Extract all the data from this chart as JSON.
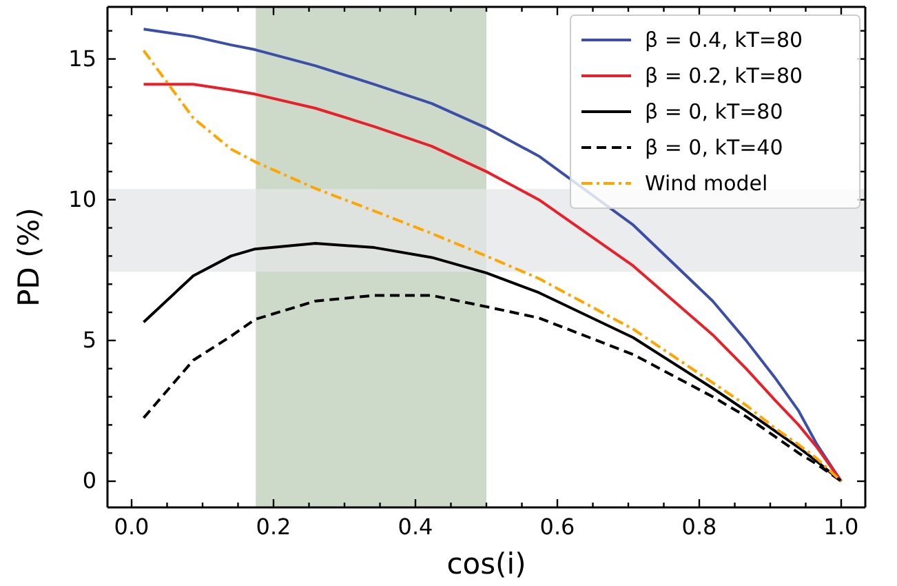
{
  "chart_data": {
    "type": "line",
    "xlabel": "cos(i)",
    "ylabel": "PD (%)",
    "x": [
      0.017,
      0.087,
      0.14,
      0.174,
      0.259,
      0.342,
      0.423,
      0.5,
      0.574,
      0.707,
      0.819,
      0.866,
      0.906,
      0.94,
      0.966,
      1.0
    ],
    "series": [
      {
        "name": "β = 0.4, kT=80",
        "color": "#3b4fa8",
        "line_style": "solid",
        "values": [
          16.06,
          15.8,
          15.5,
          15.33,
          14.76,
          14.1,
          13.42,
          12.55,
          11.55,
          9.1,
          6.4,
          5.0,
          3.7,
          2.5,
          1.3,
          0
        ]
      },
      {
        "name": "β = 0.2, kT=80",
        "color": "#e8202a",
        "line_style": "solid",
        "values": [
          14.1,
          14.1,
          13.9,
          13.75,
          13.25,
          12.6,
          11.9,
          11.0,
          10.0,
          7.65,
          5.2,
          4.0,
          2.9,
          2.0,
          1.2,
          0
        ]
      },
      {
        "name": "β = 0, kT=80",
        "color": "#000000",
        "line_style": "solid",
        "values": [
          5.65,
          7.3,
          8.0,
          8.25,
          8.45,
          8.3,
          7.95,
          7.4,
          6.7,
          5.1,
          3.3,
          2.5,
          1.8,
          1.2,
          0.7,
          0
        ]
      },
      {
        "name": "β = 0, kT=40",
        "color": "#000000",
        "line_style": "dashed",
        "values": [
          2.25,
          4.3,
          5.15,
          5.75,
          6.4,
          6.6,
          6.6,
          6.2,
          5.8,
          4.5,
          3.0,
          2.3,
          1.6,
          1.0,
          0.6,
          0
        ]
      },
      {
        "name": "Wind model",
        "color": "#ffa500",
        "line_style": "dashdot",
        "values": [
          15.3,
          12.9,
          11.8,
          11.35,
          10.4,
          9.6,
          8.8,
          8.0,
          7.2,
          5.4,
          3.5,
          2.7,
          1.9,
          1.3,
          0.8,
          0
        ]
      }
    ],
    "xlim": [
      -0.034,
      1.034
    ],
    "ylim": [
      -0.93,
      16.85
    ],
    "xticks": [
      {
        "value": 0,
        "label": "0.0"
      },
      {
        "value": 0.05,
        "label": null
      },
      {
        "value": 0.1,
        "label": null
      },
      {
        "value": 0.15,
        "label": null
      },
      {
        "value": 0.2,
        "label": "0.2"
      },
      {
        "value": 0.25,
        "label": null
      },
      {
        "value": 0.3,
        "label": null
      },
      {
        "value": 0.35,
        "label": null
      },
      {
        "value": 0.4,
        "label": "0.4"
      },
      {
        "value": 0.45,
        "label": null
      },
      {
        "value": 0.5,
        "label": null
      },
      {
        "value": 0.55,
        "label": null
      },
      {
        "value": 0.6,
        "label": "0.6"
      },
      {
        "value": 0.65,
        "label": null
      },
      {
        "value": 0.7,
        "label": null
      },
      {
        "value": 0.75,
        "label": null
      },
      {
        "value": 0.8,
        "label": "0.8"
      },
      {
        "value": 0.85,
        "label": null
      },
      {
        "value": 0.9,
        "label": null
      },
      {
        "value": 0.95,
        "label": null
      },
      {
        "value": 1,
        "label": "1.0"
      }
    ],
    "yticks": [
      0,
      {
        "value": 1,
        "label": null
      },
      {
        "value": 2,
        "label": null
      },
      {
        "value": 3,
        "label": null
      },
      {
        "value": 4,
        "label": null
      },
      5,
      {
        "value": 6,
        "label": null
      },
      {
        "value": 7,
        "label": null
      },
      {
        "value": 8,
        "label": null
      },
      {
        "value": 9,
        "label": null
      },
      10,
      {
        "value": 11,
        "label": null
      },
      {
        "value": 12,
        "label": null
      },
      {
        "value": 13,
        "label": null
      },
      {
        "value": 14,
        "label": null
      },
      15,
      {
        "value": 16,
        "label": null
      }
    ],
    "bands": [
      {
        "axis": "x",
        "from": 0.175,
        "to": 0.5,
        "color": "#cad7c6"
      },
      {
        "axis": "y",
        "from": 7.44,
        "to": 10.38,
        "color": "#e4e5e7"
      }
    ],
    "grid": false,
    "legend": "top right",
    "marker": "none"
  }
}
